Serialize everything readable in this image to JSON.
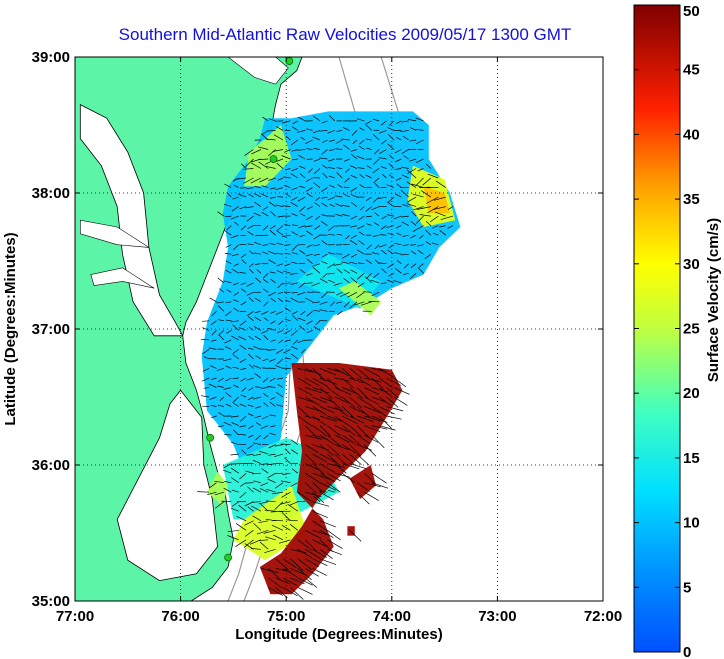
{
  "chart_data": {
    "type": "heatmap",
    "title": "Southern Mid-Atlantic Raw Velocities 2009/05/17 1300 GMT",
    "xlabel": "Longitude (Degrees:Minutes)",
    "ylabel": "Latitude (Degrees:Minutes)",
    "xlim": [
      -77,
      -72
    ],
    "ylim": [
      35,
      39
    ],
    "x_tick_values": [
      -77,
      -76,
      -75,
      -74,
      -73,
      -72
    ],
    "x_tick_labels": [
      "77:00",
      "76:00",
      "75:00",
      "74:00",
      "73:00",
      "72:00"
    ],
    "y_tick_values": [
      35,
      36,
      37,
      38,
      39
    ],
    "y_tick_labels": [
      "35:00",
      "36:00",
      "37:00",
      "38:00",
      "39:00"
    ],
    "grid": true,
    "colorbar": {
      "label": "Surface Velocity (cm/s)",
      "range": [
        0,
        50
      ],
      "tick_values": [
        0,
        5,
        10,
        15,
        20,
        25,
        30,
        35,
        40,
        45,
        50
      ],
      "tick_labels": [
        "0",
        "5",
        "10",
        "15",
        "20",
        "25",
        "30",
        "35",
        "40",
        "45",
        "50"
      ],
      "colormap": "jet"
    },
    "colors": {
      "land": "#5cf5a8",
      "water": "#ffffff",
      "title": "#1010e0",
      "vectors": "#000000",
      "bathymetry": "#9a9a9a",
      "stations": "#22cc22"
    },
    "field_regions": [
      {
        "speed": 10,
        "polygon": [
          [
            -75.2,
            38.55
          ],
          [
            -74.95,
            38.55
          ],
          [
            -74.6,
            38.6
          ],
          [
            -73.8,
            38.6
          ],
          [
            -73.65,
            38.5
          ],
          [
            -73.65,
            38.25
          ],
          [
            -73.45,
            38.0
          ],
          [
            -73.35,
            37.75
          ],
          [
            -73.55,
            37.6
          ],
          [
            -73.7,
            37.4
          ],
          [
            -74.0,
            37.3
          ],
          [
            -74.2,
            37.2
          ],
          [
            -74.55,
            37.1
          ],
          [
            -74.75,
            36.9
          ],
          [
            -75.0,
            36.65
          ],
          [
            -75.05,
            36.2
          ],
          [
            -75.2,
            35.95
          ],
          [
            -75.4,
            35.95
          ],
          [
            -75.5,
            36.15
          ],
          [
            -75.75,
            36.4
          ],
          [
            -75.8,
            36.8
          ],
          [
            -75.75,
            37.05
          ],
          [
            -75.6,
            37.35
          ],
          [
            -75.55,
            37.6
          ],
          [
            -75.6,
            37.85
          ],
          [
            -75.55,
            38.05
          ],
          [
            -75.35,
            38.25
          ],
          [
            -75.25,
            38.4
          ]
        ]
      },
      {
        "speed": 16,
        "polygon": [
          [
            -75.6,
            36.0
          ],
          [
            -75.0,
            36.2
          ],
          [
            -74.7,
            36.1
          ],
          [
            -74.5,
            35.8
          ],
          [
            -75.0,
            35.6
          ],
          [
            -75.5,
            35.6
          ]
        ]
      },
      {
        "speed": 14,
        "polygon": [
          [
            -74.9,
            37.35
          ],
          [
            -74.3,
            37.15
          ],
          [
            -74.1,
            37.35
          ],
          [
            -74.6,
            37.55
          ]
        ]
      },
      {
        "speed": 24,
        "polygon": [
          [
            -75.35,
            38.3
          ],
          [
            -75.05,
            38.5
          ],
          [
            -74.95,
            38.25
          ],
          [
            -75.2,
            38.05
          ],
          [
            -75.4,
            38.05
          ]
        ]
      },
      {
        "speed": 28,
        "polygon": [
          [
            -73.8,
            38.2
          ],
          [
            -73.5,
            38.1
          ],
          [
            -73.4,
            37.8
          ],
          [
            -73.7,
            37.75
          ],
          [
            -73.85,
            37.95
          ]
        ]
      },
      {
        "speed": 34,
        "polygon": [
          [
            -73.7,
            38.05
          ],
          [
            -73.5,
            38.0
          ],
          [
            -73.45,
            37.85
          ],
          [
            -73.65,
            37.85
          ]
        ]
      },
      {
        "speed": 24,
        "polygon": [
          [
            -74.5,
            37.3
          ],
          [
            -74.2,
            37.1
          ],
          [
            -74.1,
            37.2
          ],
          [
            -74.35,
            37.35
          ]
        ]
      },
      {
        "speed": 24,
        "polygon": [
          [
            -75.65,
            35.95
          ],
          [
            -75.55,
            35.85
          ],
          [
            -75.6,
            35.7
          ],
          [
            -75.75,
            35.8
          ]
        ]
      },
      {
        "speed": 27,
        "polygon": [
          [
            -75.4,
            35.6
          ],
          [
            -74.95,
            35.85
          ],
          [
            -74.8,
            35.5
          ],
          [
            -75.2,
            35.3
          ],
          [
            -75.5,
            35.45
          ]
        ]
      },
      {
        "speed": 48,
        "polygon": [
          [
            -74.95,
            36.75
          ],
          [
            -74.5,
            36.75
          ],
          [
            -74.0,
            36.7
          ],
          [
            -73.9,
            36.55
          ],
          [
            -74.05,
            36.35
          ],
          [
            -74.25,
            36.1
          ],
          [
            -74.45,
            35.95
          ],
          [
            -74.7,
            35.75
          ],
          [
            -74.85,
            35.55
          ],
          [
            -75.05,
            35.35
          ],
          [
            -75.25,
            35.25
          ],
          [
            -75.15,
            35.05
          ],
          [
            -74.95,
            35.05
          ],
          [
            -74.75,
            35.2
          ],
          [
            -74.55,
            35.4
          ],
          [
            -74.65,
            35.6
          ],
          [
            -74.9,
            35.8
          ],
          [
            -74.85,
            36.1
          ],
          [
            -74.9,
            36.4
          ]
        ]
      },
      {
        "speed": 48,
        "polygon": [
          [
            -74.4,
            35.9
          ],
          [
            -74.2,
            36.0
          ],
          [
            -74.15,
            35.85
          ],
          [
            -74.3,
            35.75
          ]
        ]
      },
      {
        "speed": 48,
        "polygon": [
          [
            -74.42,
            35.55
          ],
          [
            -74.35,
            35.55
          ],
          [
            -74.35,
            35.48
          ],
          [
            -74.42,
            35.48
          ]
        ]
      }
    ]
  }
}
